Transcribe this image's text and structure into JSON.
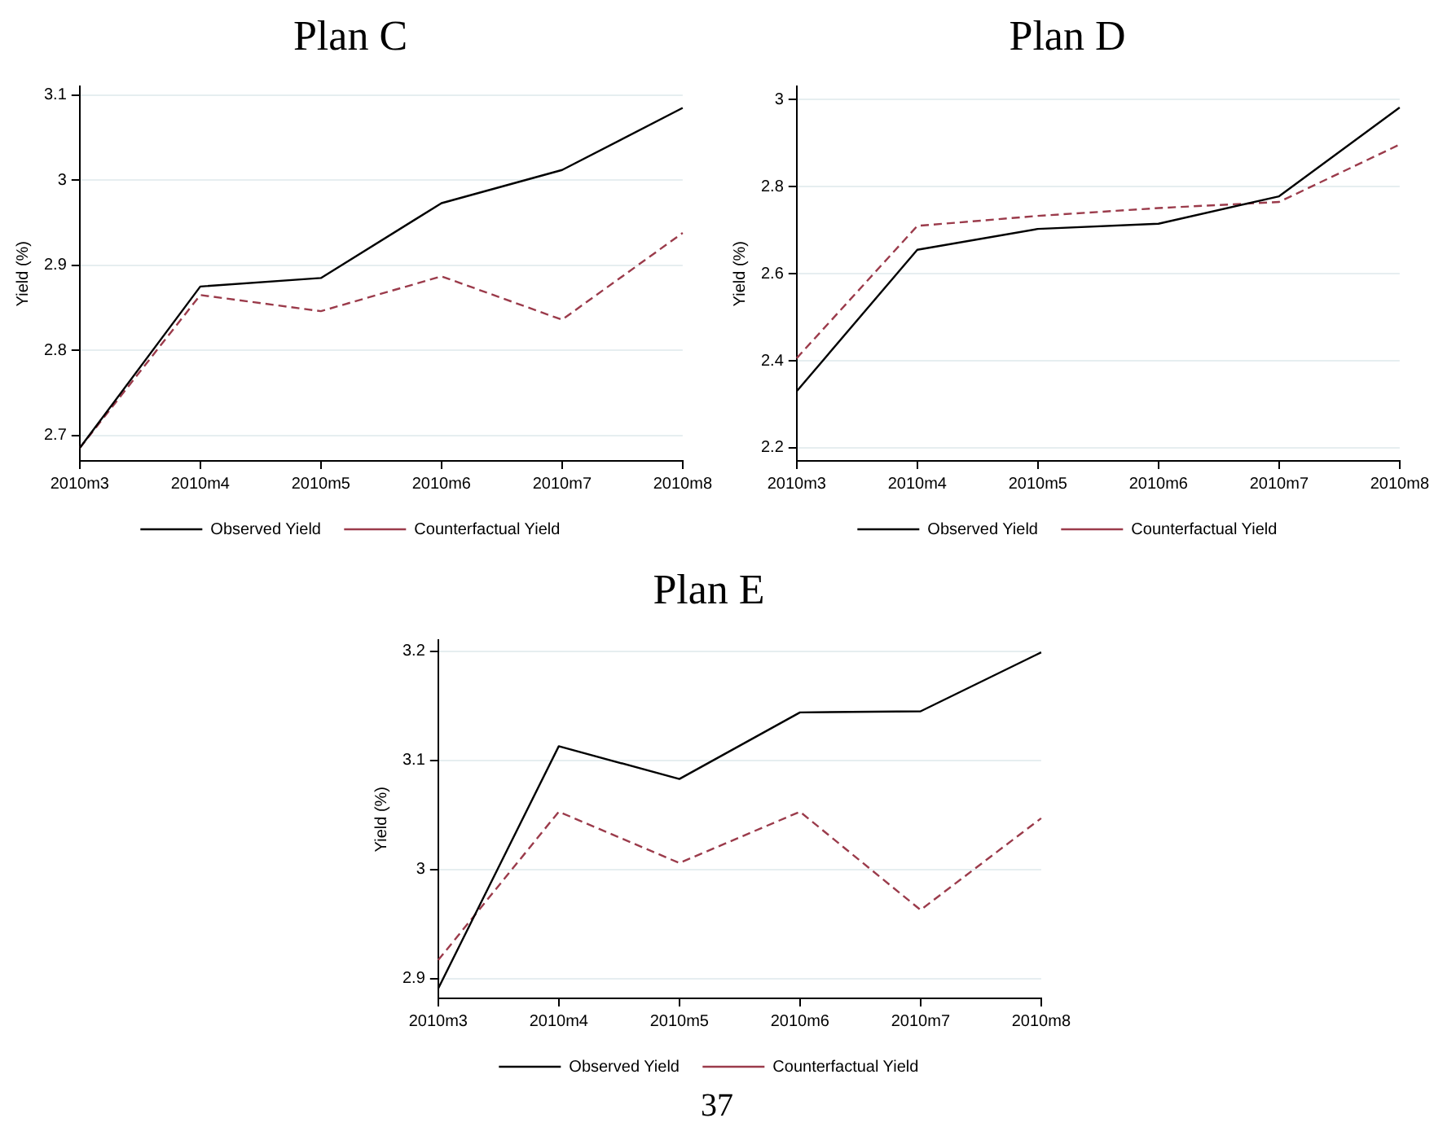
{
  "chart_data": [
    {
      "type": "line",
      "title": "Plan C",
      "ylabel": "Yield (%)",
      "categories": [
        "2010m3",
        "2010m4",
        "2010m5",
        "2010m6",
        "2010m7",
        "2010m8"
      ],
      "ylim": [
        2.67,
        3.11
      ],
      "yticks": [
        2.7,
        2.8,
        2.9,
        3,
        3.1
      ],
      "grid": "y",
      "legend": "bottom",
      "marker": "none",
      "series": [
        {
          "name": "Observed Yield",
          "color": "#000000",
          "line_style": "solid",
          "values": [
            2.685,
            2.875,
            2.885,
            2.973,
            3.012,
            3.085
          ]
        },
        {
          "name": "Counterfactual Yield",
          "color": "#9b3b4b",
          "line_style": "dashed",
          "values": [
            2.685,
            2.865,
            2.846,
            2.887,
            2.836,
            2.938
          ]
        }
      ]
    },
    {
      "type": "line",
      "title": "Plan D",
      "ylabel": "Yield (%)",
      "categories": [
        "2010m3",
        "2010m4",
        "2010m5",
        "2010m6",
        "2010m7",
        "2010m8"
      ],
      "ylim": [
        2.17,
        3.03
      ],
      "yticks": [
        2.2,
        2.4,
        2.6,
        2.8,
        3
      ],
      "grid": "y",
      "legend": "bottom",
      "marker": "none",
      "series": [
        {
          "name": "Observed Yield",
          "color": "#000000",
          "line_style": "solid",
          "values": [
            2.33,
            2.655,
            2.703,
            2.715,
            2.778,
            2.982
          ]
        },
        {
          "name": "Counterfactual Yield",
          "color": "#9b3b4b",
          "line_style": "dashed",
          "values": [
            2.406,
            2.71,
            2.733,
            2.751,
            2.765,
            2.897
          ]
        }
      ]
    },
    {
      "type": "line",
      "title": "Plan E",
      "ylabel": "Yield (%)",
      "categories": [
        "2010m3",
        "2010m4",
        "2010m5",
        "2010m6",
        "2010m7",
        "2010m8"
      ],
      "ylim": [
        2.882,
        3.21
      ],
      "yticks": [
        2.9,
        3,
        3.1,
        3.2
      ],
      "grid": "y",
      "legend": "bottom",
      "marker": "none",
      "annotations": [
        "37"
      ],
      "series": [
        {
          "name": "Observed Yield",
          "color": "#000000",
          "line_style": "solid",
          "values": [
            2.891,
            3.113,
            3.083,
            3.144,
            3.145,
            3.199
          ]
        },
        {
          "name": "Counterfactual Yield",
          "color": "#9b3b4b",
          "line_style": "dashed",
          "values": [
            2.917,
            3.053,
            3.006,
            3.053,
            2.963,
            3.047
          ]
        }
      ]
    }
  ]
}
